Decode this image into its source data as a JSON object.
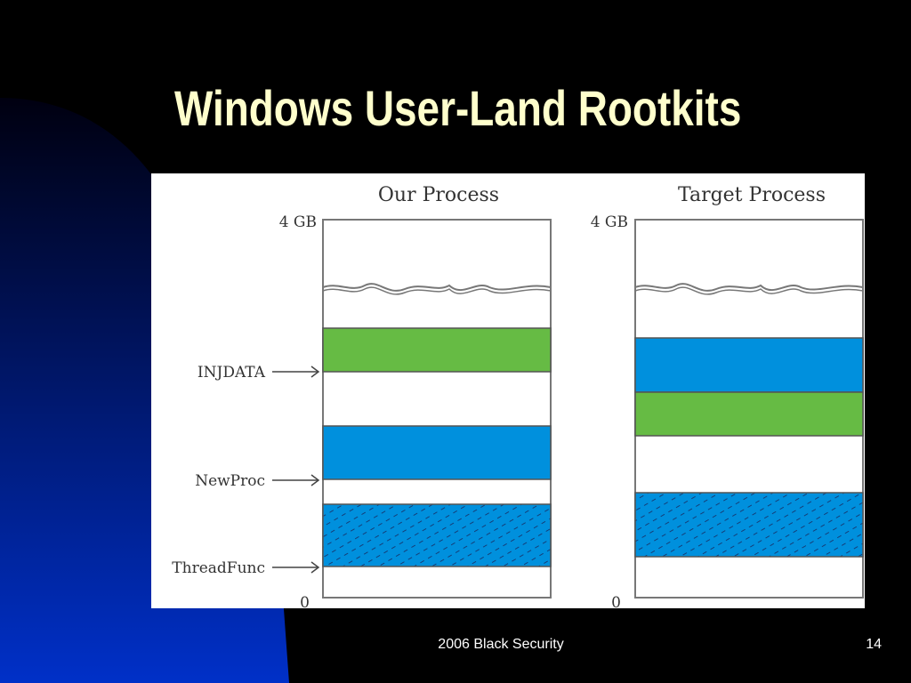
{
  "slide": {
    "title": "Windows User-Land Rootkits",
    "footer": "2006 Black Security",
    "page_number": "14"
  },
  "diagram": {
    "left_panel": {
      "title": "Our Process",
      "top_label": "4 GB",
      "bottom_label": "0",
      "arrow_labels": [
        "INJDATA",
        "NewProc",
        "ThreadFunc"
      ]
    },
    "right_panel": {
      "title": "Target Process",
      "top_label": "4 GB",
      "bottom_label": "0"
    }
  },
  "colors": {
    "title": "#ffffcc",
    "green_block": "#66bb44",
    "blue_block": "#0090dd",
    "background": "#000000",
    "gradient_blue": "#0030c0"
  }
}
